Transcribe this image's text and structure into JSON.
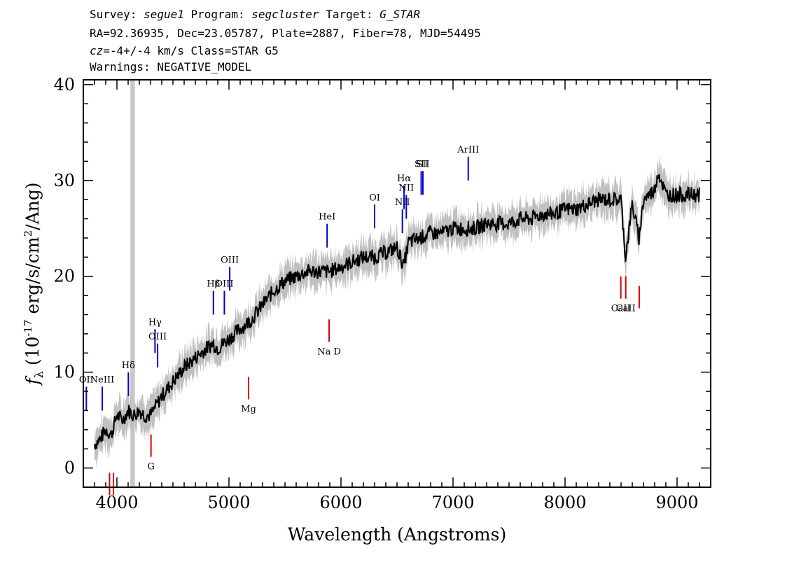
{
  "header": {
    "survey_label": "Survey:",
    "survey": "segue1",
    "program_label": "Program:",
    "program": "segcluster",
    "target_label": "Target:",
    "target": "G_STAR",
    "line2": "RA=92.36935, Dec=23.05787, Plate=2887, Fiber=78, MJD=54495",
    "cz_label": "cz",
    "cz_value": "=-4+/-4",
    "cz_rest": " km/s Class=STAR G5",
    "warnings": "Warnings: NEGATIVE_MODEL"
  },
  "chart_data": {
    "type": "line",
    "xlabel": "Wavelength (Angstroms)",
    "ylabel": "f_λ (10^-17 erg/s/cm^2/Ang)",
    "xlim": [
      3700,
      9300
    ],
    "ylim": [
      -2,
      40.5
    ],
    "xticks": [
      4000,
      5000,
      6000,
      7000,
      8000,
      9000
    ],
    "yticks": [
      0,
      10,
      20,
      30,
      40
    ],
    "grid": false,
    "masked_region": [
      4120,
      4160
    ],
    "colors": {
      "spectrum": "#000000",
      "error": "#c0c0c0",
      "emission": "#0000cc",
      "absorption": "#dd0000",
      "mask": "#c8c8c8"
    },
    "series": [
      {
        "x": [
          3800,
          3850,
          3900,
          3950,
          4000,
          4050,
          4100,
          4150,
          4200,
          4250,
          4300,
          4350,
          4400,
          4500,
          4600,
          4700,
          4800,
          4860,
          4900,
          5000,
          5100,
          5200,
          5300,
          5400,
          5500,
          5600,
          5700,
          5800,
          5900,
          6000,
          6100,
          6200,
          6300,
          6400,
          6500,
          6560,
          6600,
          6700,
          6800,
          6900,
          7000,
          7100,
          7200,
          7300,
          7400,
          7500,
          7600,
          7700,
          7800,
          7900,
          8000,
          8100,
          8200,
          8300,
          8400,
          8500,
          8540,
          8600,
          8660,
          8700,
          8800,
          8830,
          8900,
          9000,
          9100,
          9200
        ],
        "y": [
          2.5,
          3,
          4,
          3.5,
          5.5,
          5,
          6,
          5.5,
          6,
          5.5,
          5.5,
          6.5,
          7.5,
          9,
          10.5,
          11.5,
          12.5,
          13,
          12.5,
          13.5,
          14.5,
          15.5,
          17,
          18.5,
          19.5,
          20,
          20.5,
          20.5,
          20.5,
          21,
          21.5,
          22,
          22,
          22.5,
          23,
          21,
          23.5,
          24,
          24.5,
          24.5,
          25,
          25,
          25,
          25.5,
          25.5,
          25.5,
          26,
          26,
          26.5,
          26.5,
          27,
          27,
          27.5,
          28,
          28,
          28,
          22,
          27.5,
          24,
          28,
          29,
          31,
          28.5,
          28.5,
          28.5,
          28.5
        ]
      }
    ],
    "emission_lines": [
      {
        "label": "OII",
        "x": 3727,
        "y": 6
      },
      {
        "label": "NeIII",
        "x": 3869,
        "y": 6
      },
      {
        "label": "Hδ",
        "x": 4102,
        "y": 7.5
      },
      {
        "label": "Hγ",
        "x": 4340,
        "y": 12
      },
      {
        "label": "OIII",
        "x": 4363,
        "y": 10.5
      },
      {
        "label": "Hβ",
        "x": 4861,
        "y": 16
      },
      {
        "label": "OIII",
        "x": 4959,
        "y": 16
      },
      {
        "label": "OIII",
        "x": 5007,
        "y": 18.5
      },
      {
        "label": "HeI",
        "x": 5876,
        "y": 23
      },
      {
        "label": "OI",
        "x": 6300,
        "y": 25
      },
      {
        "label": "NII",
        "x": 6548,
        "y": 24.5
      },
      {
        "label": "Hα",
        "x": 6563,
        "y": 27
      },
      {
        "label": "NII",
        "x": 6583,
        "y": 26
      },
      {
        "label": "SII",
        "x": 6716,
        "y": 28.5
      },
      {
        "label": "SII",
        "x": 6731,
        "y": 28.5
      },
      {
        "label": "ArIII",
        "x": 7136,
        "y": 30
      }
    ],
    "absorption_lines": [
      {
        "label": "",
        "x": 3934,
        "y": -0.5
      },
      {
        "label": "",
        "x": 3969,
        "y": -0.5
      },
      {
        "label": "G",
        "x": 4304,
        "y": 3.5
      },
      {
        "label": "Mg",
        "x": 5175,
        "y": 9.5
      },
      {
        "label": "Na D",
        "x": 5894,
        "y": 15.5
      },
      {
        "label": "CaII",
        "x": 8498,
        "y": 20
      },
      {
        "label": "CaII",
        "x": 8542,
        "y": 20
      },
      {
        "label": "",
        "x": 8662,
        "y": 19
      }
    ]
  }
}
